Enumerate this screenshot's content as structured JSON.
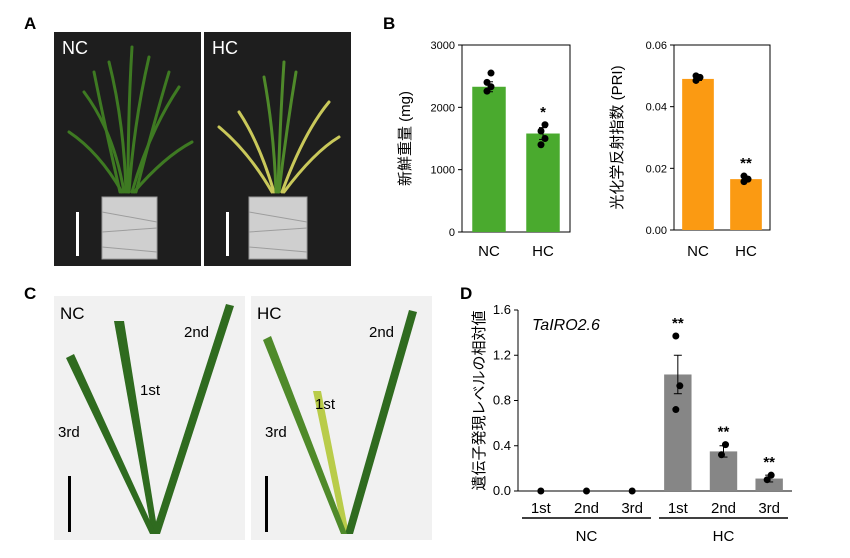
{
  "panels": {
    "a": "A",
    "b": "B",
    "c": "C",
    "d": "D"
  },
  "photo_a": {
    "nc": "NC",
    "hc": "HC"
  },
  "photo_c": {
    "nc": "NC",
    "hc": "HC",
    "nc_leaves": [
      "1st",
      "2nd",
      "3rd"
    ],
    "hc_leaves": [
      "1st",
      "2nd",
      "3rd"
    ]
  },
  "colors": {
    "green": "#4aaa2e",
    "orange": "#fb9a12",
    "gray": "#868686"
  },
  "chart_data": [
    {
      "type": "bar",
      "ylabel": "新鮮重量 (mg)",
      "categories": [
        "NC",
        "HC"
      ],
      "values": [
        2330,
        1580
      ],
      "errors": [
        80,
        95
      ],
      "points": [
        [
          2260,
          2330,
          2400,
          2550
        ],
        [
          1400,
          1500,
          1620,
          1720
        ]
      ],
      "significance": [
        "",
        "*"
      ],
      "ylim": [
        0,
        3000
      ],
      "yticks": [
        "0",
        "1000",
        "2000",
        "3000"
      ],
      "color": "#4aaa2e"
    },
    {
      "type": "bar",
      "ylabel": "光化学反射指数 (PRI)",
      "categories": [
        "NC",
        "HC"
      ],
      "values": [
        0.049,
        0.0165
      ],
      "errors": [
        0.0005,
        0.0008
      ],
      "points": [
        [
          0.0485,
          0.0495,
          0.05
        ],
        [
          0.0157,
          0.0165,
          0.0175
        ]
      ],
      "significance": [
        "",
        "**"
      ],
      "ylim": [
        0,
        0.06
      ],
      "yticks": [
        "0.00",
        "0.02",
        "0.04",
        "0.06"
      ],
      "color": "#fb9a12"
    },
    {
      "type": "bar",
      "title": "TaIRO2.6",
      "ylabel": "遺伝子発現レベルの相対値",
      "categories": [
        "1st",
        "2nd",
        "3rd",
        "1st",
        "2nd",
        "3rd"
      ],
      "groups": [
        "NC",
        "HC"
      ],
      "values": [
        0,
        0,
        0,
        1.03,
        0.35,
        0.11
      ],
      "errors": [
        0,
        0,
        0,
        0.17,
        0.05,
        0.03
      ],
      "points": [
        [
          0
        ],
        [
          0
        ],
        [
          0
        ],
        [
          0.72,
          0.93,
          1.37
        ],
        [
          0.32,
          0.41
        ],
        [
          0.1,
          0.14
        ]
      ],
      "significance": [
        "",
        "",
        "",
        "**",
        "**",
        "**"
      ],
      "ylim": [
        0,
        1.6
      ],
      "yticks": [
        "0.0",
        "0.4",
        "0.8",
        "1.2",
        "1.6"
      ],
      "color": "#868686"
    }
  ]
}
